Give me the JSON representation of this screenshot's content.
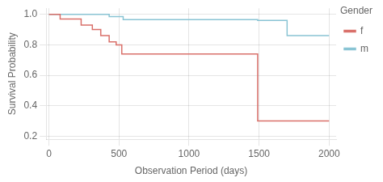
{
  "chart_data": {
    "type": "step",
    "xlabel": "Observation Period (days)",
    "ylabel": "Survival Probability",
    "legend_title": "Gender",
    "series": [
      {
        "name": "f",
        "color": "#d9706a",
        "x": [
          0,
          80,
          80,
          230,
          230,
          310,
          310,
          370,
          370,
          430,
          430,
          480,
          480,
          520,
          520,
          1490,
          1490,
          1700,
          1700,
          2000
        ],
        "values": [
          1.0,
          1.0,
          0.97,
          0.97,
          0.93,
          0.93,
          0.9,
          0.9,
          0.86,
          0.86,
          0.82,
          0.82,
          0.8,
          0.8,
          0.74,
          0.74,
          0.3,
          0.3,
          0.3,
          0.3
        ]
      },
      {
        "name": "m",
        "color": "#89c4d4",
        "x": [
          0,
          430,
          430,
          530,
          530,
          1490,
          1490,
          1700,
          1700,
          2000
        ],
        "values": [
          1.0,
          1.0,
          0.985,
          0.985,
          0.965,
          0.965,
          0.96,
          0.96,
          0.86,
          0.86
        ]
      }
    ],
    "xlim": [
      -20,
      2050
    ],
    "ylim": [
      0.18,
      1.04
    ],
    "xticks": [
      0,
      500,
      1000,
      1500,
      2000
    ],
    "yticks": [
      0.2,
      0.4,
      0.6,
      0.8,
      {
        "value": 1.0,
        "label": "1.0"
      }
    ],
    "grid": true,
    "legend": "right"
  }
}
